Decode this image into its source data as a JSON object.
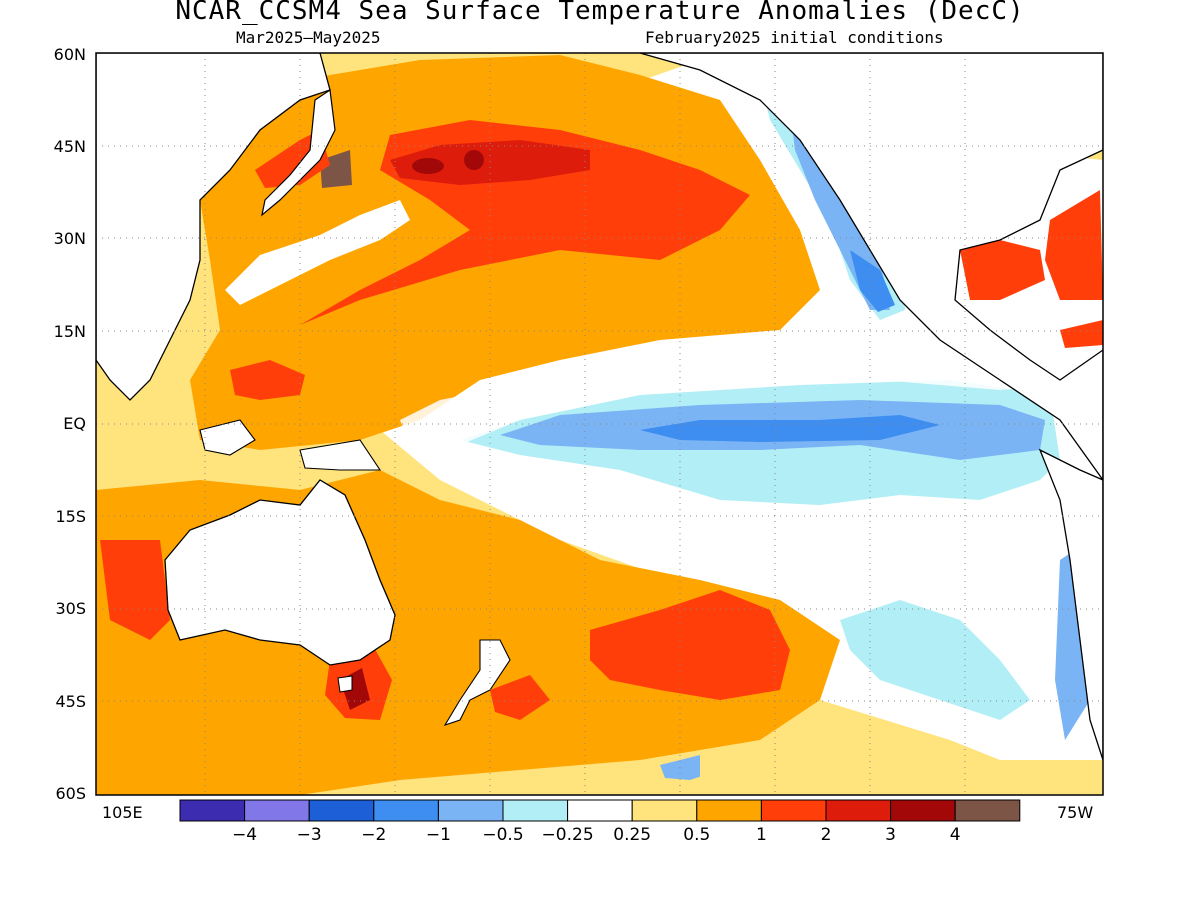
{
  "title": "NCAR_CCSM4 Sea Surface Temperature Anomalies (DecC)",
  "subtitle_left": "Mar2025–May2025",
  "subtitle_right": "February2025 initial conditions",
  "lat_labels": [
    "60N",
    "45N",
    "30N",
    "15N",
    "EQ",
    "15S",
    "30S",
    "45S",
    "60S"
  ],
  "lon_labels": [
    "105E",
    "75W"
  ],
  "colorbar": {
    "colors": [
      "#3b2cb0",
      "#8277e8",
      "#1c5fd6",
      "#3d8ef0",
      "#7ab4f5",
      "#b2eef5",
      "#ffffff",
      "#ffe37c",
      "#ffa500",
      "#ff3e0a",
      "#dd1c0c",
      "#a30808",
      "#7c5546"
    ],
    "labels": [
      "−4",
      "−3",
      "−2",
      "−1",
      "−0.5",
      "−0.25",
      "0.25",
      "0.5",
      "1",
      "2",
      "3",
      "4"
    ]
  },
  "map": {
    "land_color": "#ffffff",
    "coastline_color": "#000000",
    "gridline_style": "dotted"
  }
}
